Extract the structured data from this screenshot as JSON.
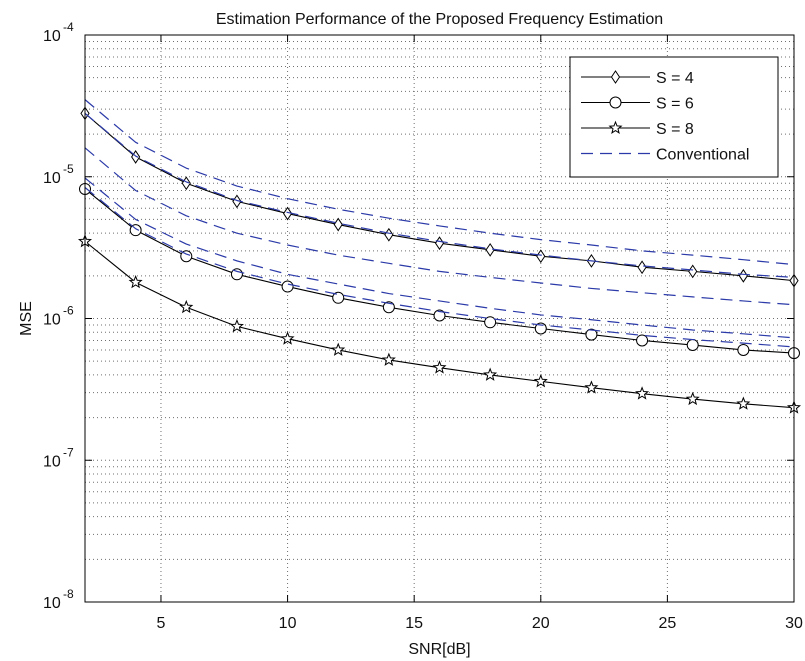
{
  "chart_data": {
    "type": "line",
    "title": "Estimation Performance of the Proposed Frequency Estimation",
    "xlabel": "SNR[dB]",
    "ylabel": "MSE",
    "xlim": [
      2,
      30
    ],
    "ylim": [
      1e-08,
      0.0001
    ],
    "yscale": "log",
    "grid": true,
    "legend_position": "top-right",
    "x_ticks": [
      5,
      10,
      15,
      20,
      25,
      30
    ],
    "x_tick_labels": [
      "5",
      "10",
      "15",
      "20",
      "25",
      "30"
    ],
    "y_ticks": [
      1e-08,
      1e-07,
      1e-06,
      1e-05,
      0.0001
    ],
    "y_tick_labels": [
      {
        "base": "10",
        "exp": "-8"
      },
      {
        "base": "10",
        "exp": "-7"
      },
      {
        "base": "10",
        "exp": "-6"
      },
      {
        "base": "10",
        "exp": "-5"
      },
      {
        "base": "10",
        "exp": "-4"
      }
    ],
    "x": [
      2,
      4,
      6,
      8,
      10,
      12,
      14,
      16,
      18,
      20,
      22,
      24,
      26,
      28,
      30
    ],
    "series": [
      {
        "name": "S = 4",
        "marker": "diamond",
        "style": "solid",
        "color": "#000000",
        "values": [
          2.8e-05,
          1.38e-05,
          9e-06,
          6.7e-06,
          5.5e-06,
          4.6e-06,
          3.9e-06,
          3.4e-06,
          3.05e-06,
          2.75e-06,
          2.55e-06,
          2.3e-06,
          2.15e-06,
          2e-06,
          1.85e-06
        ]
      },
      {
        "name": "S = 6",
        "marker": "circle",
        "style": "solid",
        "color": "#000000",
        "values": [
          8.2e-06,
          4.2e-06,
          2.75e-06,
          2.05e-06,
          1.68e-06,
          1.4e-06,
          1.2e-06,
          1.05e-06,
          9.4e-07,
          8.5e-07,
          7.7e-07,
          7e-07,
          6.5e-07,
          6e-07,
          5.7e-07
        ]
      },
      {
        "name": "S = 8",
        "marker": "star",
        "style": "solid",
        "color": "#000000",
        "values": [
          3.5e-06,
          1.8e-06,
          1.2e-06,
          8.8e-07,
          7.2e-07,
          6e-07,
          5.1e-07,
          4.5e-07,
          4e-07,
          3.6e-07,
          3.25e-07,
          2.95e-07,
          2.7e-07,
          2.5e-07,
          2.35e-07
        ]
      },
      {
        "name": "Conventional",
        "marker": "none",
        "style": "dashed",
        "color": "#2b3aa8",
        "values": [
          3.5e-05,
          1.75e-05,
          1.15e-05,
          8.6e-06,
          7e-06,
          5.9e-06,
          5.1e-06,
          4.5e-06,
          4e-06,
          3.6e-06,
          3.3e-06,
          3e-06,
          2.8e-06,
          2.6e-06,
          2.4e-06
        ]
      },
      {
        "name": "",
        "marker": "none",
        "style": "dashed",
        "color": "#2b3aa8",
        "values": [
          2.8e-05,
          1.4e-05,
          9.2e-06,
          6.8e-06,
          5.6e-06,
          4.7e-06,
          4e-06,
          3.5e-06,
          3.1e-06,
          2.8e-06,
          2.55e-06,
          2.35e-06,
          2.2e-06,
          2.05e-06,
          1.95e-06
        ]
      },
      {
        "name": "",
        "marker": "none",
        "style": "dashed",
        "color": "#2b3aa8",
        "values": [
          1.6e-05,
          8e-06,
          5.3e-06,
          4e-06,
          3.3e-06,
          2.8e-06,
          2.45e-06,
          2.15e-06,
          1.95e-06,
          1.78e-06,
          1.63e-06,
          1.52e-06,
          1.42e-06,
          1.33e-06,
          1.25e-06
        ]
      },
      {
        "name": "",
        "marker": "none",
        "style": "dashed",
        "color": "#2b3aa8",
        "values": [
          9.8e-06,
          5e-06,
          3.35e-06,
          2.55e-06,
          2.05e-06,
          1.75e-06,
          1.5e-06,
          1.33e-06,
          1.18e-06,
          1.06e-06,
          9.8e-07,
          9e-07,
          8.3e-07,
          7.8e-07,
          7.3e-07
        ]
      },
      {
        "name": "",
        "marker": "none",
        "style": "dashed",
        "color": "#2b3aa8",
        "values": [
          8.4e-06,
          4.3e-06,
          2.85e-06,
          2.15e-06,
          1.75e-06,
          1.48e-06,
          1.28e-06,
          1.12e-06,
          1e-06,
          9e-07,
          8.3e-07,
          7.6e-07,
          7.1e-07,
          6.7e-07,
          6.3e-07
        ]
      }
    ]
  }
}
